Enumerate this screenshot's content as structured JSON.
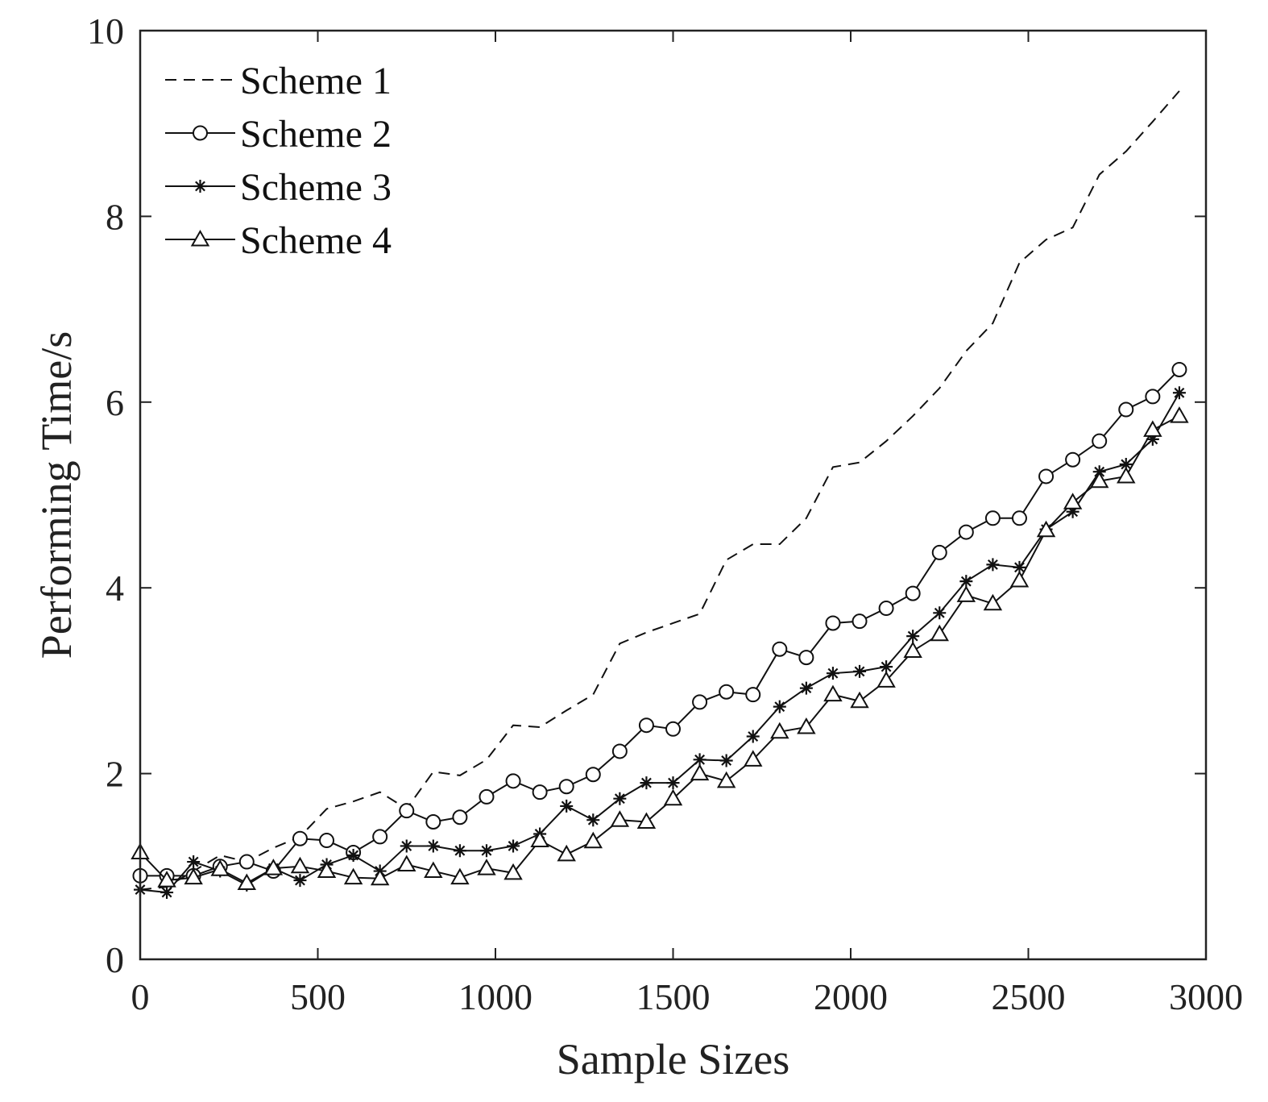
{
  "chart_data": {
    "type": "line",
    "title": "",
    "xlabel": "Sample Sizes",
    "ylabel": "Performing Time/s",
    "xlim": [
      0,
      3000
    ],
    "ylim": [
      0,
      10
    ],
    "xticks": [
      0,
      500,
      1000,
      1500,
      2000,
      2500,
      3000
    ],
    "yticks": [
      0,
      2,
      4,
      6,
      8,
      10
    ],
    "grid": false,
    "legend_position": "top-left",
    "x": [
      0,
      75,
      150,
      225,
      300,
      375,
      450,
      525,
      600,
      675,
      750,
      825,
      900,
      975,
      1050,
      1125,
      1200,
      1275,
      1350,
      1425,
      1500,
      1575,
      1650,
      1725,
      1800,
      1875,
      1950,
      2025,
      2100,
      2175,
      2250,
      2325,
      2400,
      2475,
      2550,
      2625,
      2700,
      2775,
      2850,
      2925
    ],
    "series": [
      {
        "name": "Scheme 1",
        "style": "dashed",
        "marker": "none",
        "values": [
          0.75,
          0.78,
          0.95,
          1.12,
          1.05,
          1.2,
          1.32,
          1.62,
          1.7,
          1.8,
          1.62,
          2.02,
          1.98,
          2.15,
          2.52,
          2.5,
          2.68,
          2.85,
          3.4,
          3.52,
          3.62,
          3.72,
          4.3,
          4.47,
          4.47,
          4.75,
          5.3,
          5.35,
          5.58,
          5.85,
          6.15,
          6.55,
          6.85,
          7.5,
          7.75,
          7.88,
          8.45,
          8.7,
          9.02,
          9.35
        ]
      },
      {
        "name": "Scheme 2",
        "style": "solid",
        "marker": "circle",
        "values": [
          0.9,
          0.9,
          0.9,
          1.0,
          1.05,
          0.95,
          1.3,
          1.28,
          1.15,
          1.32,
          1.6,
          1.48,
          1.53,
          1.75,
          1.92,
          1.8,
          1.86,
          1.99,
          2.24,
          2.52,
          2.48,
          2.77,
          2.88,
          2.85,
          3.34,
          3.25,
          3.62,
          3.64,
          3.78,
          3.94,
          4.38,
          4.6,
          4.75,
          4.75,
          5.2,
          5.38,
          5.58,
          5.92,
          6.06,
          6.35
        ]
      },
      {
        "name": "Scheme 3",
        "style": "solid",
        "marker": "star",
        "values": [
          0.75,
          0.72,
          1.05,
          0.95,
          0.8,
          0.98,
          0.85,
          1.02,
          1.12,
          0.95,
          1.22,
          1.22,
          1.17,
          1.17,
          1.22,
          1.35,
          1.65,
          1.5,
          1.73,
          1.9,
          1.9,
          2.15,
          2.14,
          2.4,
          2.72,
          2.92,
          3.08,
          3.1,
          3.15,
          3.48,
          3.73,
          4.07,
          4.25,
          4.22,
          4.63,
          4.82,
          5.25,
          5.33,
          5.6,
          6.1
        ]
      },
      {
        "name": "Scheme 4",
        "style": "solid",
        "marker": "triangle",
        "values": [
          1.15,
          0.85,
          0.88,
          0.97,
          0.82,
          0.98,
          1.0,
          0.95,
          0.88,
          0.87,
          1.02,
          0.95,
          0.88,
          0.98,
          0.93,
          1.28,
          1.13,
          1.27,
          1.5,
          1.48,
          1.73,
          2.0,
          1.92,
          2.15,
          2.45,
          2.5,
          2.85,
          2.78,
          3.0,
          3.32,
          3.5,
          3.92,
          3.83,
          4.08,
          4.62,
          4.92,
          5.15,
          5.2,
          5.7,
          5.85
        ]
      }
    ]
  }
}
